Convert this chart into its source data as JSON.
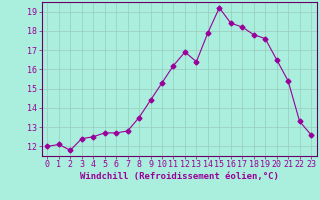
{
  "x": [
    0,
    1,
    2,
    3,
    4,
    5,
    6,
    7,
    8,
    9,
    10,
    11,
    12,
    13,
    14,
    15,
    16,
    17,
    18,
    19,
    20,
    21,
    22,
    23
  ],
  "y": [
    12.0,
    12.1,
    11.8,
    12.4,
    12.5,
    12.7,
    12.7,
    12.8,
    13.5,
    14.4,
    15.3,
    16.2,
    16.9,
    16.4,
    17.9,
    19.2,
    18.4,
    18.2,
    17.8,
    17.6,
    16.5,
    15.4,
    13.3,
    12.6
  ],
  "line_color": "#990099",
  "marker": "D",
  "marker_size": 2.5,
  "bg_color": "#aaeedd",
  "grid_color": "#99ccbb",
  "xlabel": "Windchill (Refroidissement éolien,°C)",
  "xlim": [
    -0.5,
    23.5
  ],
  "ylim": [
    11.5,
    19.5
  ],
  "yticks": [
    12,
    13,
    14,
    15,
    16,
    17,
    18,
    19
  ],
  "xticks": [
    0,
    1,
    2,
    3,
    4,
    5,
    6,
    7,
    8,
    9,
    10,
    11,
    12,
    13,
    14,
    15,
    16,
    17,
    18,
    19,
    20,
    21,
    22,
    23
  ],
  "tick_color": "#990099",
  "label_color": "#990099",
  "axis_color": "#660066",
  "tick_fontsize": 6,
  "xlabel_fontsize": 6.5
}
